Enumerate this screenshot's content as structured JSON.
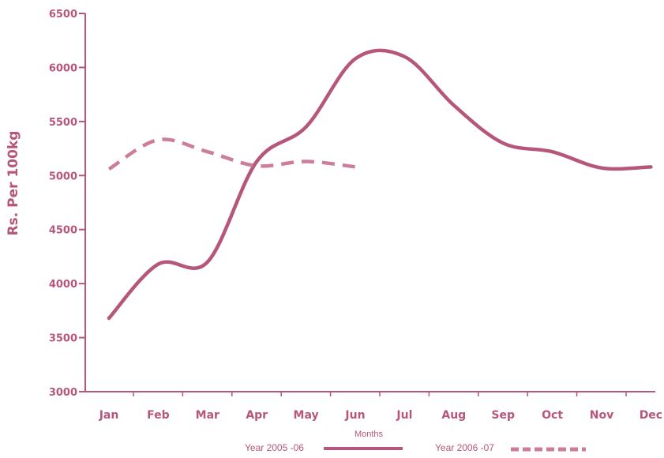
{
  "chart_data": {
    "type": "line",
    "title": "",
    "xlabel": "Months",
    "ylabel": "Rs. Per 100kg",
    "categories": [
      "Jan",
      "Feb",
      "Mar",
      "Apr",
      "May",
      "Jun",
      "Jul",
      "Aug",
      "Sep",
      "Oct",
      "Nov",
      "Dec"
    ],
    "ylim": [
      3000,
      6500
    ],
    "yticks": [
      3000,
      3500,
      4000,
      4500,
      5000,
      5500,
      6000,
      6500
    ],
    "series": [
      {
        "name": "Year 2005 -06",
        "style": "solid",
        "values": [
          3680,
          4180,
          4200,
          5130,
          5450,
          6080,
          6100,
          5650,
          5300,
          5220,
          5070,
          5080
        ]
      },
      {
        "name": "Year 2006 -07",
        "style": "dashed",
        "values": [
          5060,
          5330,
          5220,
          5090,
          5130,
          5080,
          null,
          null,
          null,
          null,
          null,
          null
        ]
      }
    ],
    "colors": {
      "line": "#b5567a",
      "dashed": "#cd7d9b",
      "axis": "#b5567a"
    },
    "grid": false,
    "legend_position": "bottom"
  }
}
